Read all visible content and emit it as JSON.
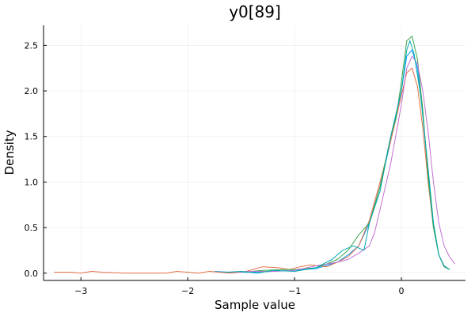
{
  "chart_data": {
    "type": "line",
    "title": "y0[89]",
    "xlabel": "Sample value",
    "ylabel": "Density",
    "xlim": [
      -3.35,
      0.6
    ],
    "ylim": [
      -0.08,
      2.72
    ],
    "xticks": [
      -3,
      -2,
      -1,
      0
    ],
    "xtick_labels": [
      "−3",
      "−2",
      "−1",
      "0"
    ],
    "yticks": [
      0.0,
      0.5,
      1.0,
      1.5,
      2.0,
      2.5
    ],
    "ytick_labels": [
      "0.0",
      "0.5",
      "1.0",
      "1.5",
      "2.0",
      "2.5"
    ],
    "grid": true,
    "legend": "none",
    "colors": {
      "blue": "#009AFA",
      "orange": "#E36F47",
      "green": "#3EA44E",
      "purple": "#C271D2",
      "teal": "#00A9AD"
    },
    "series": [
      {
        "color": "#009AFA",
        "points": [
          [
            -1.75,
            0.02
          ],
          [
            -1.6,
            0.01
          ],
          [
            -1.4,
            0.01
          ],
          [
            -1.2,
            0.02
          ],
          [
            -1.0,
            0.03
          ],
          [
            -0.8,
            0.05
          ],
          [
            -0.6,
            0.12
          ],
          [
            -0.5,
            0.2
          ],
          [
            -0.4,
            0.3
          ],
          [
            -0.3,
            0.55
          ],
          [
            -0.2,
            0.95
          ],
          [
            -0.1,
            1.45
          ],
          [
            0.0,
            2.0
          ],
          [
            0.05,
            2.38
          ],
          [
            0.1,
            2.45
          ],
          [
            0.15,
            2.25
          ],
          [
            0.2,
            1.75
          ],
          [
            0.25,
            1.1
          ],
          [
            0.3,
            0.55
          ],
          [
            0.35,
            0.2
          ],
          [
            0.4,
            0.07
          ],
          [
            0.45,
            0.04
          ]
        ]
      },
      {
        "color": "#E36F47",
        "points": [
          [
            -3.25,
            0.01
          ],
          [
            -3.1,
            0.01
          ],
          [
            -3.0,
            0.0
          ],
          [
            -2.9,
            0.02
          ],
          [
            -2.8,
            0.01
          ],
          [
            -2.6,
            0.0
          ],
          [
            -2.4,
            0.0
          ],
          [
            -2.2,
            0.0
          ],
          [
            -2.1,
            0.02
          ],
          [
            -2.0,
            0.01
          ],
          [
            -1.9,
            0.0
          ],
          [
            -1.8,
            0.02
          ],
          [
            -1.6,
            0.0
          ],
          [
            -1.45,
            0.02
          ],
          [
            -1.3,
            0.07
          ],
          [
            -1.15,
            0.06
          ],
          [
            -1.05,
            0.04
          ],
          [
            -0.95,
            0.07
          ],
          [
            -0.85,
            0.09
          ],
          [
            -0.7,
            0.07
          ],
          [
            -0.6,
            0.12
          ],
          [
            -0.5,
            0.18
          ],
          [
            -0.4,
            0.3
          ],
          [
            -0.3,
            0.58
          ],
          [
            -0.2,
            1.0
          ],
          [
            -0.1,
            1.45
          ],
          [
            -0.05,
            1.7
          ],
          [
            0.0,
            1.95
          ],
          [
            0.05,
            2.2
          ],
          [
            0.1,
            2.25
          ],
          [
            0.15,
            2.05
          ],
          [
            0.2,
            1.6
          ],
          [
            0.25,
            1.0
          ],
          [
            0.3,
            0.5
          ],
          [
            0.35,
            0.2
          ],
          [
            0.4,
            0.08
          ],
          [
            0.45,
            0.04
          ]
        ]
      },
      {
        "color": "#3EA44E",
        "points": [
          [
            -1.4,
            0.02
          ],
          [
            -1.3,
            0.03
          ],
          [
            -1.1,
            0.04
          ],
          [
            -1.0,
            0.04
          ],
          [
            -0.8,
            0.06
          ],
          [
            -0.7,
            0.1
          ],
          [
            -0.6,
            0.15
          ],
          [
            -0.5,
            0.25
          ],
          [
            -0.4,
            0.42
          ],
          [
            -0.3,
            0.55
          ],
          [
            -0.2,
            0.95
          ],
          [
            -0.1,
            1.5
          ],
          [
            -0.05,
            1.7
          ],
          [
            0.0,
            2.1
          ],
          [
            0.05,
            2.55
          ],
          [
            0.1,
            2.6
          ],
          [
            0.15,
            2.35
          ],
          [
            0.2,
            1.8
          ],
          [
            0.25,
            1.05
          ],
          [
            0.3,
            0.5
          ],
          [
            0.35,
            0.2
          ],
          [
            0.4,
            0.07
          ],
          [
            0.45,
            0.04
          ]
        ]
      },
      {
        "color": "#C271D2",
        "points": [
          [
            -1.6,
            0.01
          ],
          [
            -1.4,
            0.02
          ],
          [
            -1.2,
            0.02
          ],
          [
            -1.0,
            0.03
          ],
          [
            -0.8,
            0.08
          ],
          [
            -0.7,
            0.1
          ],
          [
            -0.6,
            0.12
          ],
          [
            -0.5,
            0.15
          ],
          [
            -0.4,
            0.22
          ],
          [
            -0.3,
            0.3
          ],
          [
            -0.25,
            0.45
          ],
          [
            -0.2,
            0.7
          ],
          [
            -0.1,
            1.2
          ],
          [
            0.0,
            1.85
          ],
          [
            0.05,
            2.25
          ],
          [
            0.1,
            2.38
          ],
          [
            0.15,
            2.3
          ],
          [
            0.2,
            2.0
          ],
          [
            0.25,
            1.55
          ],
          [
            0.3,
            1.0
          ],
          [
            0.35,
            0.55
          ],
          [
            0.4,
            0.3
          ],
          [
            0.45,
            0.18
          ],
          [
            0.5,
            0.1
          ]
        ]
      },
      {
        "color": "#00A9AD",
        "points": [
          [
            -1.65,
            0.01
          ],
          [
            -1.5,
            0.02
          ],
          [
            -1.35,
            0.0
          ],
          [
            -1.2,
            0.03
          ],
          [
            -1.0,
            0.02
          ],
          [
            -0.8,
            0.06
          ],
          [
            -0.65,
            0.15
          ],
          [
            -0.55,
            0.25
          ],
          [
            -0.45,
            0.3
          ],
          [
            -0.35,
            0.25
          ],
          [
            -0.3,
            0.55
          ],
          [
            -0.2,
            0.9
          ],
          [
            -0.1,
            1.5
          ],
          [
            0.0,
            2.0
          ],
          [
            0.05,
            2.45
          ],
          [
            0.08,
            2.55
          ],
          [
            0.12,
            2.4
          ],
          [
            0.18,
            1.95
          ],
          [
            0.25,
            1.15
          ],
          [
            0.3,
            0.55
          ],
          [
            0.35,
            0.2
          ],
          [
            0.4,
            0.08
          ],
          [
            0.45,
            0.04
          ]
        ]
      }
    ]
  }
}
